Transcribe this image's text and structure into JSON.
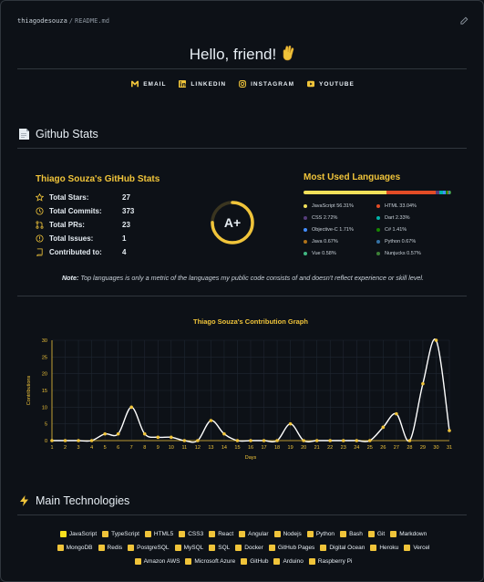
{
  "breadcrumb": {
    "repo": "thiagodesouza",
    "sep": "/",
    "file": "README.md"
  },
  "greeting": "Hello, friend!",
  "links": [
    {
      "label": "EMAIL",
      "icon": "gmail-icon"
    },
    {
      "label": "LINKEDIN",
      "icon": "linkedin-icon"
    },
    {
      "label": "INSTAGRAM",
      "icon": "instagram-icon"
    },
    {
      "label": "YOUTUBE",
      "icon": "youtube-icon"
    }
  ],
  "stats_heading": "Github Stats",
  "stats": {
    "title": "Thiago Souza's GitHub Stats",
    "rows": [
      {
        "label": "Total Stars:",
        "value": "27",
        "icon": "star-icon"
      },
      {
        "label": "Total Commits:",
        "value": "373",
        "icon": "history-icon"
      },
      {
        "label": "Total PRs:",
        "value": "23",
        "icon": "pull-request-icon"
      },
      {
        "label": "Total Issues:",
        "value": "1",
        "icon": "issue-icon"
      },
      {
        "label": "Contributed to:",
        "value": "4",
        "icon": "repo-icon"
      }
    ],
    "rank": "A+",
    "rank_fill": 0.75
  },
  "languages": {
    "title": "Most Used Languages",
    "items": [
      {
        "label": "JavaScript 56.31%",
        "color": "#f1e05a",
        "pct": 56.31
      },
      {
        "label": "HTML 33.04%",
        "color": "#e34c26",
        "pct": 33.04
      },
      {
        "label": "CSS 2.72%",
        "color": "#563d7c",
        "pct": 2.72
      },
      {
        "label": "Dart 2.33%",
        "color": "#00b4ab",
        "pct": 2.33
      },
      {
        "label": "Objective-C 1.71%",
        "color": "#438eff",
        "pct": 1.71
      },
      {
        "label": "C# 1.41%",
        "color": "#178600",
        "pct": 1.41
      },
      {
        "label": "Java 0.67%",
        "color": "#b07219",
        "pct": 0.67
      },
      {
        "label": "Python 0.67%",
        "color": "#3572A5",
        "pct": 0.67
      },
      {
        "label": "Vue 0.58%",
        "color": "#41b883",
        "pct": 0.58
      },
      {
        "label": "Nunjucks 0.57%",
        "color": "#3d8137",
        "pct": 0.57
      }
    ]
  },
  "note": {
    "bold": "Note:",
    "text": " Top languages is only a metric of the languages my public code consists of and doesn't reflect experience or skill level."
  },
  "chart_data": {
    "type": "line",
    "title": "Thiago Souza's Contribution Graph",
    "xlabel": "Days",
    "ylabel": "Contributions",
    "x": [
      1,
      2,
      3,
      4,
      5,
      6,
      7,
      8,
      9,
      10,
      11,
      12,
      13,
      14,
      15,
      16,
      17,
      18,
      19,
      20,
      21,
      22,
      23,
      24,
      25,
      26,
      27,
      28,
      29,
      30,
      31
    ],
    "values": [
      0,
      0,
      0,
      0,
      2,
      2,
      10,
      2,
      1,
      1,
      0,
      0,
      6,
      2,
      0,
      0,
      0,
      0,
      5,
      0,
      0,
      0,
      0,
      0,
      0,
      4,
      8,
      0,
      17,
      30,
      3
    ],
    "ylim": [
      0,
      30
    ],
    "yticks": [
      0,
      5,
      10,
      15,
      20,
      25,
      30
    ],
    "grid": true,
    "line_color": "#ffffff",
    "point_color": "#f0c43a"
  },
  "tech_heading": "Main Technologies",
  "tech_rows": [
    [
      {
        "label": "JavaScript",
        "color": "#f7df1e",
        "icon": "javascript-icon"
      },
      {
        "label": "TypeScript",
        "color": "#f0c43a",
        "icon": "typescript-icon"
      },
      {
        "label": "HTML5",
        "color": "#f0c43a",
        "icon": "html5-icon"
      },
      {
        "label": "CSS3",
        "color": "#f0c43a",
        "icon": "css3-icon"
      },
      {
        "label": "React",
        "color": "#f0c43a",
        "icon": "react-icon"
      },
      {
        "label": "Angular",
        "color": "#f0c43a",
        "icon": "angular-icon"
      },
      {
        "label": "Nodejs",
        "color": "#f0c43a",
        "icon": "nodejs-icon"
      },
      {
        "label": "Python",
        "color": "#f0c43a",
        "icon": "python-icon"
      },
      {
        "label": "Bash",
        "color": "#f0c43a",
        "icon": "bash-icon"
      },
      {
        "label": "Git",
        "color": "#f0c43a",
        "icon": "git-icon"
      },
      {
        "label": "Markdown",
        "color": "#f0c43a",
        "icon": "markdown-icon"
      }
    ],
    [
      {
        "label": "MongoDB",
        "color": "#f0c43a",
        "icon": "mongodb-icon"
      },
      {
        "label": "Redis",
        "color": "#f0c43a",
        "icon": "redis-icon"
      },
      {
        "label": "PostgreSQL",
        "color": "#f0c43a",
        "icon": "postgresql-icon"
      },
      {
        "label": "MySQL",
        "color": "#f0c43a",
        "icon": "mysql-icon"
      },
      {
        "label": "SQL",
        "color": "#f0c43a",
        "icon": "sql-icon"
      },
      {
        "label": "Docker",
        "color": "#f0c43a",
        "icon": "docker-icon"
      },
      {
        "label": "GitHub Pages",
        "color": "#f0c43a",
        "icon": "github-pages-icon"
      },
      {
        "label": "Digital Ocean",
        "color": "#f0c43a",
        "icon": "digitalocean-icon"
      },
      {
        "label": "Heroku",
        "color": "#f0c43a",
        "icon": "heroku-icon"
      },
      {
        "label": "Vercel",
        "color": "#f0c43a",
        "icon": "vercel-icon"
      }
    ],
    [
      {
        "label": "Amazon AWS",
        "color": "#f0c43a",
        "icon": "aws-icon"
      },
      {
        "label": "Microsoft Azure",
        "color": "#f0c43a",
        "icon": "azure-icon"
      },
      {
        "label": "GitHub",
        "color": "#f0c43a",
        "icon": "github-icon"
      },
      {
        "label": "Arduino",
        "color": "#f0c43a",
        "icon": "arduino-icon"
      },
      {
        "label": "Raspberry Pi",
        "color": "#f0c43a",
        "icon": "raspberrypi-icon"
      }
    ]
  ]
}
